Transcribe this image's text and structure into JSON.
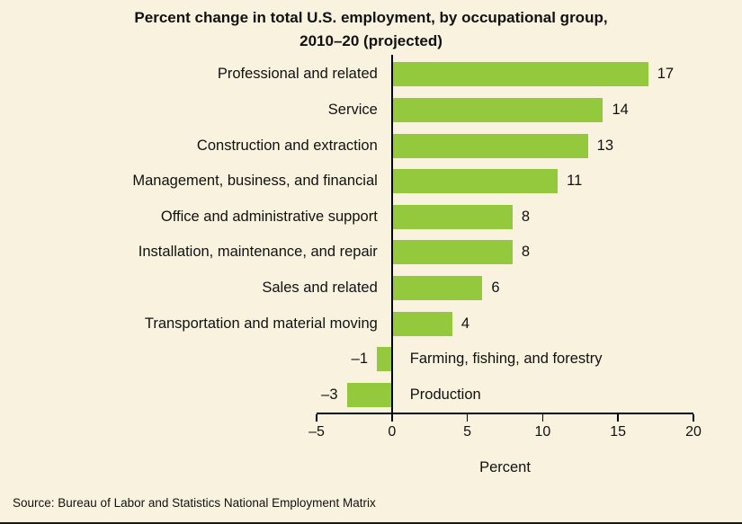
{
  "title": "Percent change in total U.S. employment, by occupational group,\n2010–20 (projected)",
  "source": "Source: Bureau of Labor and Statistics National Employment Matrix",
  "colors": {
    "background": "#f9f2de",
    "bar": "#94c83d",
    "axis": "#000000",
    "text": "#111111"
  },
  "chart_data": {
    "type": "bar",
    "orientation": "horizontal",
    "title": "Percent change in total U.S. employment, by occupational group, 2010–20 (projected)",
    "categories": [
      "Professional and related",
      "Service",
      "Construction and extraction",
      "Management, business, and financial",
      "Office and administrative support",
      "Installation, maintenance, and repair",
      "Sales and related",
      "Transportation and material moving",
      "Farming, fishing, and forestry",
      "Production"
    ],
    "values": [
      17,
      14,
      13,
      11,
      8,
      8,
      6,
      4,
      -1,
      -3
    ],
    "value_labels": [
      "17",
      "14",
      "13",
      "11",
      "8",
      "8",
      "6",
      "4",
      "–1",
      "–3"
    ],
    "xlabel": "Percent",
    "xlim": [
      -5,
      20
    ],
    "xticks": [
      -5,
      0,
      5,
      10,
      15,
      20
    ],
    "xtick_labels": [
      "–5",
      "0",
      "5",
      "10",
      "15",
      "20"
    ],
    "grid": false,
    "legend": false
  }
}
